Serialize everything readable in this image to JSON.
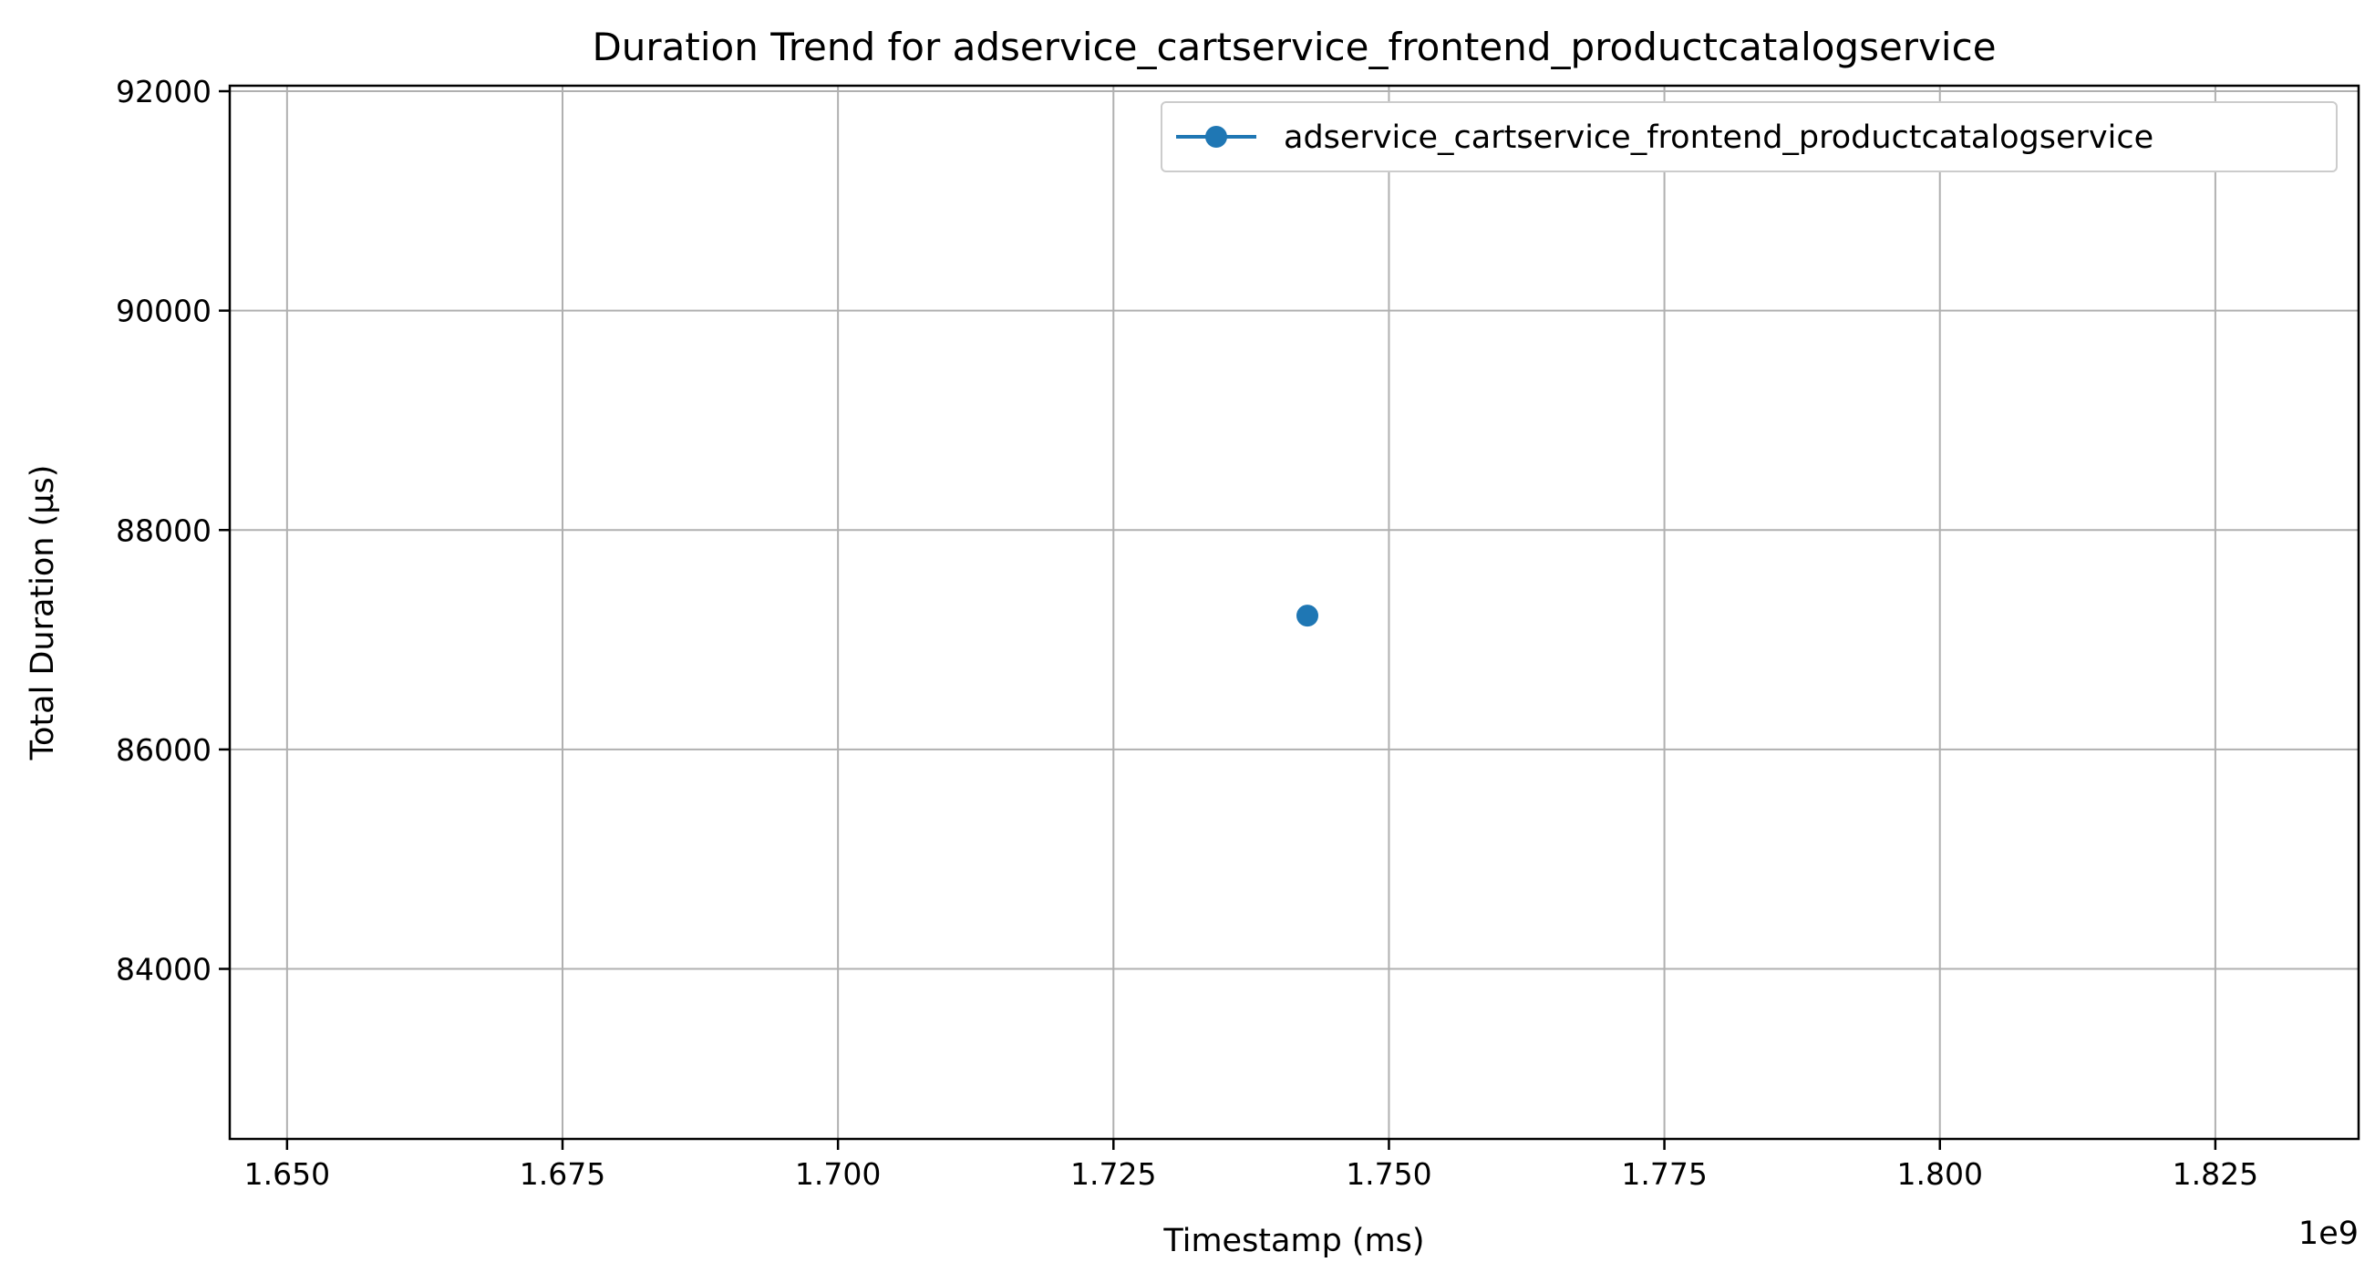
{
  "chart_data": {
    "type": "line",
    "title": "Duration Trend for adservice_cartservice_frontend_productcatalogservice",
    "xlabel": "Timestamp (ms)",
    "ylabel": "Total Duration (μs)",
    "x_offset_label": "1e9",
    "x_scale_factor": 1000000000,
    "xlim": [
      1.6448,
      1.838
    ],
    "ylim": [
      82450,
      92050
    ],
    "xticks": [
      1.65,
      1.675,
      1.7,
      1.725,
      1.75,
      1.775,
      1.8,
      1.825
    ],
    "xtick_labels": [
      "1.650",
      "1.675",
      "1.700",
      "1.725",
      "1.750",
      "1.775",
      "1.800",
      "1.825"
    ],
    "yticks": [
      84000,
      86000,
      88000,
      90000,
      92000
    ],
    "ytick_labels": [
      "84000",
      "86000",
      "88000",
      "90000",
      "92000"
    ],
    "grid": true,
    "legend_position": "top-right",
    "series": [
      {
        "name": "adservice_cartservice_frontend_productcatalogservice",
        "color": "#1f77b4",
        "marker": "circle",
        "x": [
          1.7426
        ],
        "y": [
          87220
        ]
      }
    ]
  }
}
